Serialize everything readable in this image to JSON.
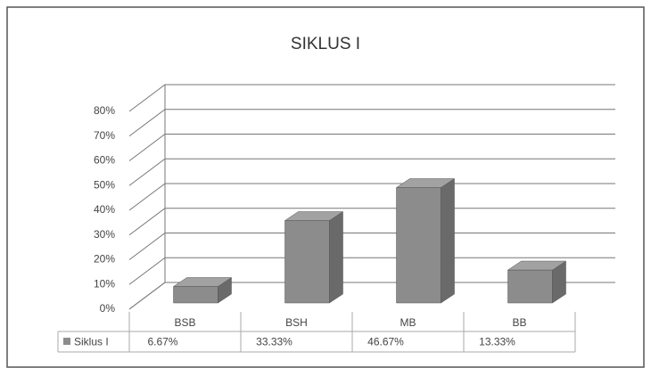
{
  "chart_data": {
    "type": "bar3d",
    "title": "SIKLUS I",
    "categories": [
      "BSB",
      "BSH",
      "MB",
      "BB"
    ],
    "series": [
      {
        "name": "Siklus I",
        "color": "#8c8c8c",
        "values": [
          6.67,
          33.33,
          46.67,
          13.33
        ],
        "value_labels": [
          "6.67%",
          "33.33%",
          "46.67%",
          "13.33%"
        ]
      }
    ],
    "ylim": [
      0,
      80
    ],
    "yticks": [
      {
        "value": 0,
        "label": "0%"
      },
      {
        "value": 10,
        "label": "10%"
      },
      {
        "value": 20,
        "label": "20%"
      },
      {
        "value": 30,
        "label": "30%"
      },
      {
        "value": 40,
        "label": "40%"
      },
      {
        "value": 50,
        "label": "50%"
      },
      {
        "value": 60,
        "label": "60%"
      },
      {
        "value": 70,
        "label": "70%"
      },
      {
        "value": 80,
        "label": "80%"
      }
    ],
    "grid": true,
    "data_table": true
  }
}
